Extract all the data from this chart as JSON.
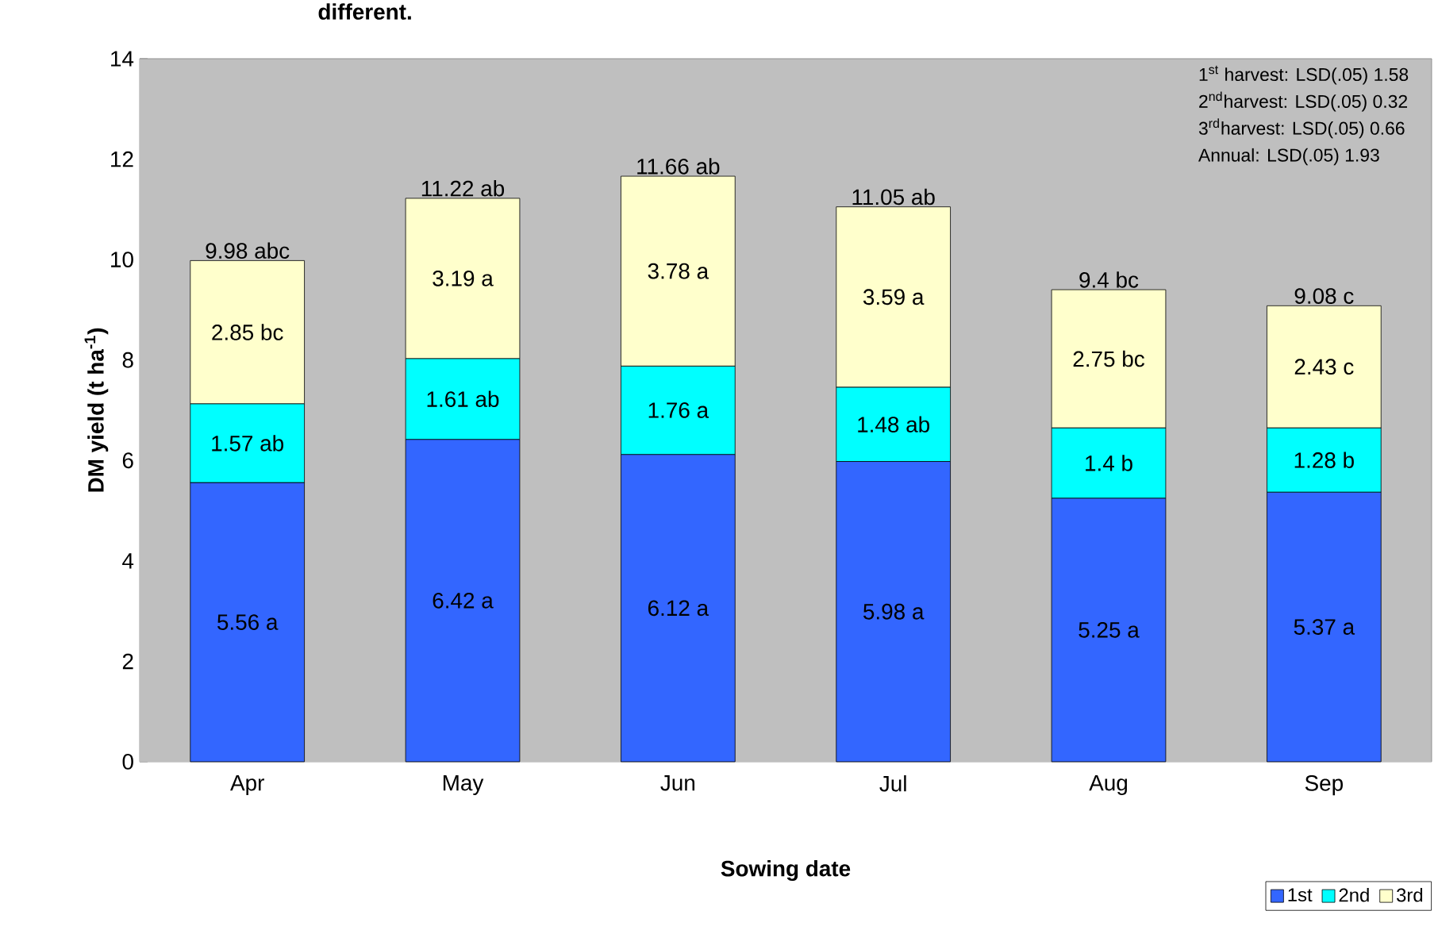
{
  "chart_data": {
    "type": "bar",
    "stacked": true,
    "title": "different.",
    "xlabel": "Sowing date",
    "ylabel": "DM  yield (t ha$^{-1}$)",
    "categories": [
      "Apr",
      "May",
      "Jun",
      "Jul",
      "Aug",
      "Sep"
    ],
    "series": [
      {
        "name": "1st",
        "color": "#3366ff",
        "values": [
          5.56,
          6.42,
          6.12,
          5.98,
          5.25,
          5.37
        ],
        "value_labels": [
          "5.56 a",
          "6.42 a",
          "6.12 a",
          "5.98 a",
          "5.25 a",
          "5.37 a"
        ]
      },
      {
        "name": "2nd",
        "color": "#00ffff",
        "values": [
          1.57,
          1.61,
          1.76,
          1.48,
          1.4,
          1.28
        ],
        "value_labels": [
          "1.57 ab",
          "1.61 ab",
          "1.76 a",
          "1.48 ab",
          "1.4 b",
          "1.28 b"
        ]
      },
      {
        "name": "3rd",
        "color": "#ffffcc",
        "values": [
          2.85,
          3.19,
          3.78,
          3.59,
          2.75,
          2.43
        ],
        "value_labels": [
          "2.85 bc",
          "3.19 a",
          "3.78 a",
          "3.59 a",
          "2.75 bc",
          "2.43 c"
        ]
      }
    ],
    "totals": [
      "9.98 abc",
      "11.22 ab",
      "11.66 ab",
      "11.05 ab",
      "9.4 bc",
      "9.08 c"
    ],
    "ylim": [
      0,
      14
    ],
    "yticks": [
      0,
      2,
      4,
      6,
      8,
      10,
      12,
      14
    ],
    "grid": false,
    "legend": "bottom right",
    "annotations": [
      "1$^{st}$ harvest: LSD(.05) 1.58",
      "2$^{nd}$harvest: LSD(.05) 0.32",
      "3$^{rd}$harvest: LSD(.05) 0.66",
      "Annual: LSD(.05) 1.93"
    ]
  }
}
